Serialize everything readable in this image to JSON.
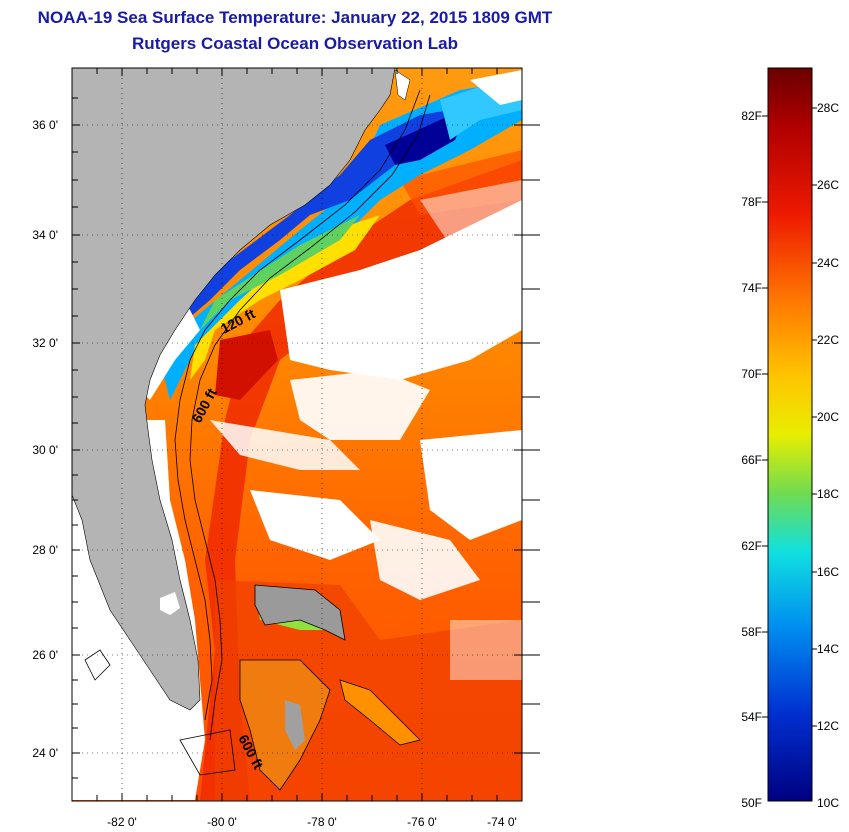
{
  "header": {
    "title": "NOAA-19 Sea Surface Temperature:  January 22, 2015 1809 GMT",
    "subtitle": "Rutgers Coastal Ocean Observation Lab"
  },
  "map": {
    "lat_labels": [
      "36 0'",
      "34 0'",
      "32 0'",
      "30 0'",
      "28 0'",
      "26 0'",
      "24 0'"
    ],
    "lon_labels": [
      "-82 0'",
      "-80 0'",
      "-78 0'",
      "-76 0'",
      "-74 0'"
    ],
    "contour_labels": [
      "120 ft",
      "600 ft",
      "600 ft"
    ],
    "colors": {
      "land": "#b4b4b4",
      "cloud": "#ffffff",
      "frame": "#000000"
    }
  },
  "colorbar": {
    "fahrenheit_labels": [
      "82F",
      "78F",
      "74F",
      "70F",
      "66F",
      "62F",
      "58F",
      "54F",
      "50F"
    ],
    "celsius_labels": [
      "28C",
      "26C",
      "24C",
      "22C",
      "20C",
      "18C",
      "16C",
      "14C",
      "12C",
      "10C"
    ],
    "gradient": [
      "#7a0000",
      "#c40000",
      "#f02000",
      "#ff7000",
      "#ffc800",
      "#f0f000",
      "#90e040",
      "#20e0d0",
      "#00a0f0",
      "#0040e0",
      "#0000a0"
    ]
  }
}
